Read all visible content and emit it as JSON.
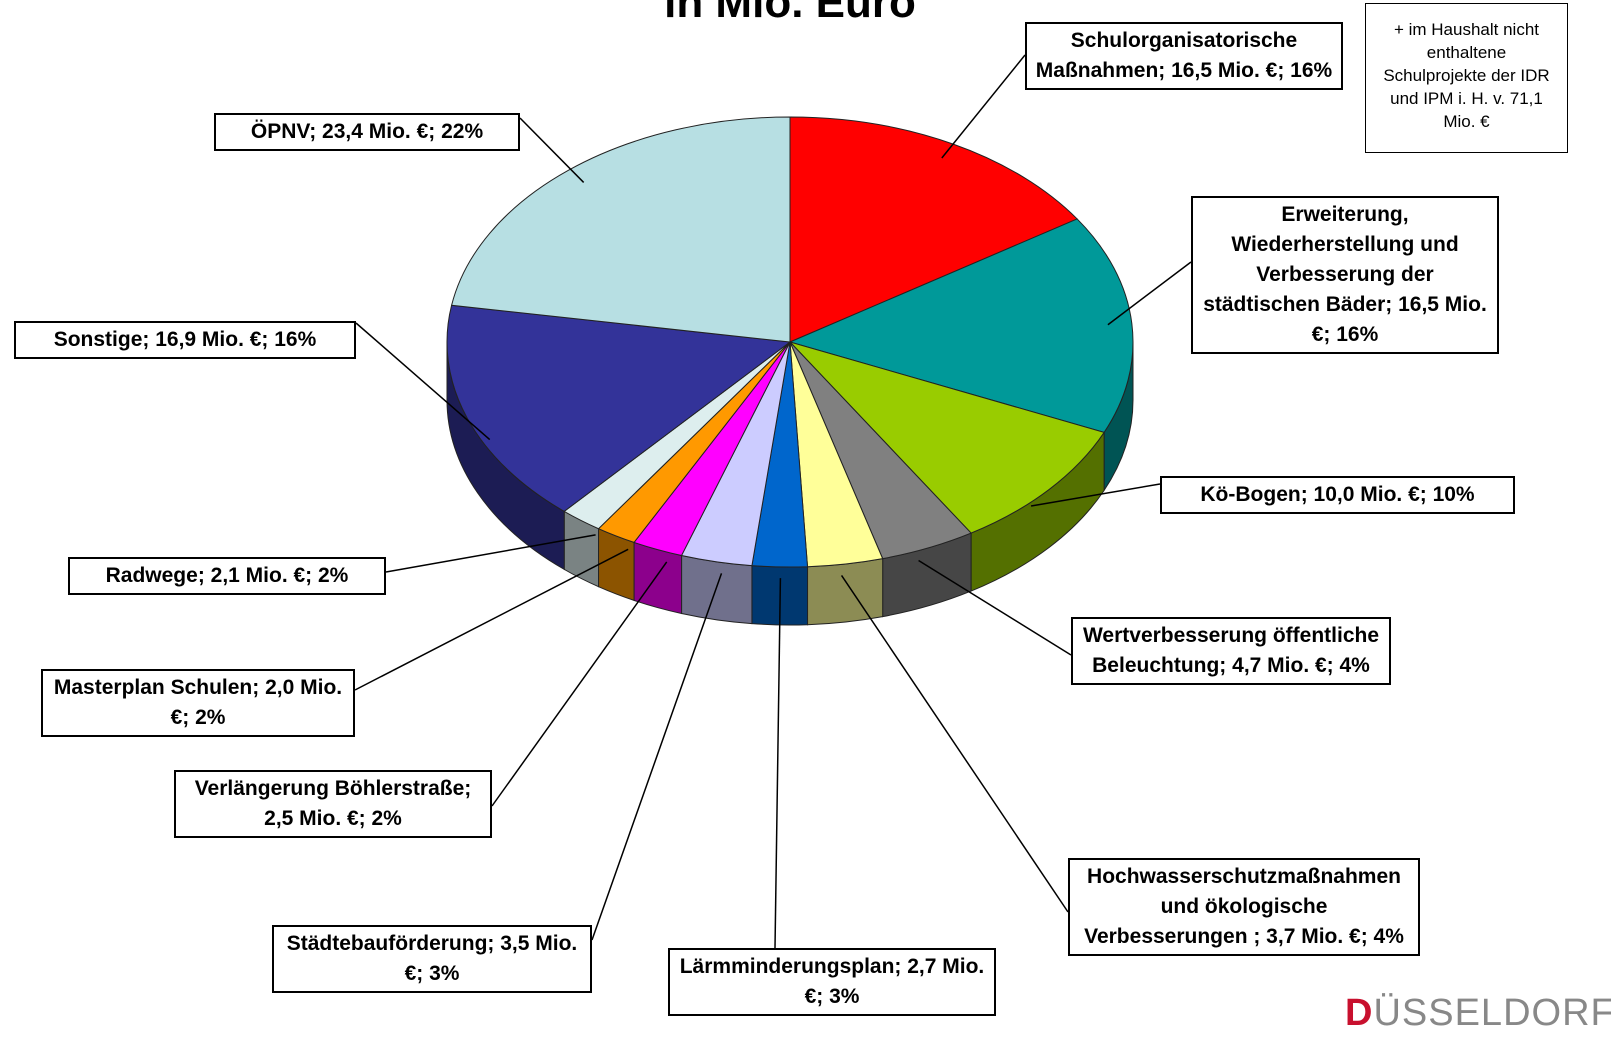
{
  "chart_data": {
    "type": "pie",
    "title": "in Mio. Euro",
    "annotation": "+ im Haushalt nicht enthaltene Schulprojekte der IDR und IPM i. H. v. 71,1 Mio. €",
    "logo": "DÜSSELDORF",
    "categories": [
      "Schulorganisatorische Maßnahmen; 16,5 Mio. €; 16%",
      "Erweiterung, Wiederherstellung und Verbesserung der städtischen Bäder; 16,5 Mio. €; 16%",
      "Kö-Bogen; 10,0 Mio. €; 10%",
      "Wertverbesserung öffentliche Beleuchtung; 4,7 Mio. €; 4%",
      "Hochwasserschutzmaßnahmen und ökologische Verbesserungen ; 3,7 Mio. €; 4%",
      "Lärmminderungsplan; 2,7 Mio. €; 3%",
      "Städtebauförderung; 3,5 Mio. €; 3%",
      "Verlängerung Böhlerstraße; 2,5 Mio. €; 2%",
      "Masterplan Schulen; 2,0 Mio. €; 2%",
      "Radwege; 2,1 Mio. €; 2%",
      "Sonstige; 16,9 Mio. €; 16%",
      "ÖPNV; 23,4 Mio. €; 22%"
    ],
    "values": [
      16.5,
      16.5,
      10.0,
      4.7,
      3.7,
      2.7,
      3.5,
      2.5,
      2.0,
      2.1,
      16.9,
      23.4
    ],
    "colors": [
      "#ff0000",
      "#009999",
      "#99cc00",
      "#808080",
      "#ffff99",
      "#0066cc",
      "#ccccff",
      "#ff00ff",
      "#ff9900",
      "#ddeeee",
      "#333399",
      "#b7dfe3"
    ]
  }
}
